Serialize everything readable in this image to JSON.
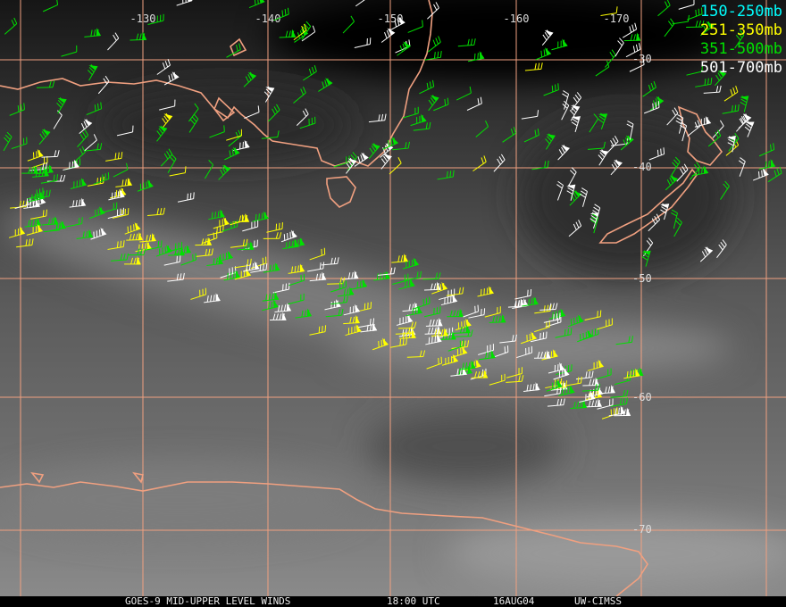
{
  "map": {
    "longitude_labels": [
      "-130",
      "-140",
      "-150",
      "-160",
      "-170"
    ],
    "latitude_labels": [
      "-30",
      "-40",
      "-50",
      "-60",
      "-70"
    ],
    "legend": [
      {
        "label": "150-250mb",
        "color": "#00ffff"
      },
      {
        "label": "251-350mb",
        "color": "#ffff00"
      },
      {
        "label": "351-500mb",
        "color": "#00e000"
      },
      {
        "label": "501-700mb",
        "color": "#ffffff"
      }
    ],
    "footer": {
      "product": "GOES-9 MID-UPPER LEVEL WINDS",
      "time": "18:00 UTC",
      "date": "16AUG04",
      "source": "UW-CIMSS"
    }
  }
}
